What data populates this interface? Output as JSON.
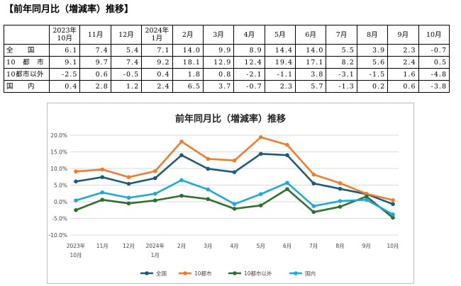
{
  "heading": "【前年同月比（増減率）推移】",
  "table": {
    "columns": [
      {
        "line1": "2023年",
        "line2": "10月"
      },
      {
        "line1": "11月",
        "line2": ""
      },
      {
        "line1": "12月",
        "line2": ""
      },
      {
        "line1": "2024年",
        "line2": "1月"
      },
      {
        "line1": "2月",
        "line2": ""
      },
      {
        "line1": "3月",
        "line2": ""
      },
      {
        "line1": "4月",
        "line2": ""
      },
      {
        "line1": "5月",
        "line2": ""
      },
      {
        "line1": "6月",
        "line2": ""
      },
      {
        "line1": "7月",
        "line2": ""
      },
      {
        "line1": "8月",
        "line2": ""
      },
      {
        "line1": "9月",
        "line2": ""
      },
      {
        "line1": "10月",
        "line2": ""
      }
    ],
    "rows": [
      {
        "label": "全　　国",
        "values": [
          "6.1",
          "7.4",
          "5.4",
          "7.1",
          "14.0",
          "9.9",
          "8.9",
          "14.4",
          "14.0",
          "5.5",
          "3.9",
          "2.3",
          "-0.7"
        ]
      },
      {
        "label": "10　都　市",
        "values": [
          "9.1",
          "9.7",
          "7.4",
          "9.2",
          "18.1",
          "12.9",
          "12.4",
          "19.4",
          "17.1",
          "8.2",
          "5.6",
          "2.4",
          "0.5"
        ]
      },
      {
        "label": "10都市以外",
        "values": [
          "-2.5",
          "0.6",
          "-0.5",
          "0.4",
          "1.8",
          "0.8",
          "-2.1",
          "-1.1",
          "3.8",
          "-3.1",
          "-1.5",
          "1.6",
          "-4.8"
        ]
      },
      {
        "label": "国　　内",
        "values": [
          "0.4",
          "2.8",
          "1.2",
          "2.4",
          "6.5",
          "3.7",
          "-0.7",
          "2.3",
          "5.7",
          "-1.3",
          "0.2",
          "0.6",
          "-3.8"
        ]
      }
    ]
  },
  "chart_data": {
    "type": "line",
    "title": "前年同月比（増減率）推移",
    "categories": [
      [
        "2023年",
        "10月"
      ],
      [
        "11月",
        ""
      ],
      [
        "12月",
        ""
      ],
      [
        "2024年",
        "1月"
      ],
      [
        "2月",
        ""
      ],
      [
        "3月",
        ""
      ],
      [
        "4月",
        ""
      ],
      [
        "5月",
        ""
      ],
      [
        "6月",
        ""
      ],
      [
        "7月",
        ""
      ],
      [
        "8月",
        ""
      ],
      [
        "9月",
        ""
      ],
      [
        "10月",
        ""
      ]
    ],
    "ylim": [
      -10,
      20
    ],
    "yticks": [
      -10,
      -5,
      0,
      5,
      10,
      15,
      20
    ],
    "ytick_labels": [
      "-10.0%",
      "-5.0%",
      "0.0%",
      "5.0%",
      "10.0%",
      "15.0%",
      "20.0%"
    ],
    "grid": true,
    "legend": "bottom",
    "series": [
      {
        "name": "全国",
        "color": "#1f5b79",
        "values": [
          6.1,
          7.4,
          5.4,
          7.1,
          14.0,
          9.9,
          8.9,
          14.4,
          14.0,
          5.5,
          3.9,
          2.3,
          -0.7
        ]
      },
      {
        "name": "10都市",
        "color": "#ed7d31",
        "values": [
          9.1,
          9.7,
          7.4,
          9.2,
          18.1,
          12.9,
          12.4,
          19.4,
          17.1,
          8.2,
          5.6,
          2.4,
          0.5
        ]
      },
      {
        "name": "10都市以外",
        "color": "#2f6f2f",
        "values": [
          -2.5,
          0.6,
          -0.5,
          0.4,
          1.8,
          0.8,
          -2.1,
          -1.1,
          3.8,
          -3.1,
          -1.5,
          1.6,
          -4.8
        ]
      },
      {
        "name": "国内",
        "color": "#1fa7d8",
        "values": [
          0.4,
          2.8,
          1.2,
          2.4,
          6.5,
          3.7,
          -0.7,
          2.3,
          5.7,
          -1.3,
          0.2,
          0.6,
          -3.8
        ]
      }
    ]
  }
}
